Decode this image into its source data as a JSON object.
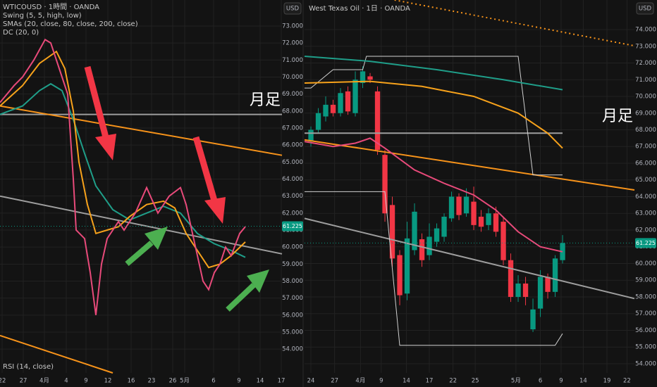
{
  "chart_data": [
    {
      "type": "line",
      "title": "WTICOUSD · 1時間 · OANDA",
      "currency": "USD",
      "legend": [
        "Swing (5, 5, high, low)",
        "SMAs (20, close, 80, close, 200, close)",
        "DC (20, 0)"
      ],
      "indicator": "RSI (14, close)",
      "annotation": "月足",
      "last_price": 61.225,
      "xlim": [
        0,
        100
      ],
      "ylim": [
        52.6,
        74.53
      ],
      "xticks": [
        {
          "value": 0.75,
          "label": "22"
        },
        {
          "value": 8.25,
          "label": "27"
        },
        {
          "value": 15.75,
          "label": "4月"
        },
        {
          "value": 23.5,
          "label": "4"
        },
        {
          "value": 30.5,
          "label": "9"
        },
        {
          "value": 38.25,
          "label": "12"
        },
        {
          "value": 46.5,
          "label": "16"
        },
        {
          "value": 53.75,
          "label": "23"
        },
        {
          "value": 61.25,
          "label": "26"
        },
        {
          "value": 65.5,
          "label": "5月"
        },
        {
          "value": 75.75,
          "label": "6"
        },
        {
          "value": 84.75,
          "label": "9"
        },
        {
          "value": 92.25,
          "label": "14"
        },
        {
          "value": 99.75,
          "label": "17"
        }
      ],
      "yticks": [
        {
          "value": 73,
          "label": "73.000"
        },
        {
          "value": 72,
          "label": "72.000"
        },
        {
          "value": 71,
          "label": "71.000"
        },
        {
          "value": 70,
          "label": "70.000"
        },
        {
          "value": 69,
          "label": "69.000"
        },
        {
          "value": 68,
          "label": "68.000"
        },
        {
          "value": 67,
          "label": "67.000"
        },
        {
          "value": 66,
          "label": "66.000"
        },
        {
          "value": 65,
          "label": "65.000"
        },
        {
          "value": 64,
          "label": "64.000"
        },
        {
          "value": 63,
          "label": "63.000"
        },
        {
          "value": 62,
          "label": "62.000"
        },
        {
          "value": 61,
          "label": "61.000"
        },
        {
          "value": 60,
          "label": "60.000"
        },
        {
          "value": 59,
          "label": "59.000"
        },
        {
          "value": 58,
          "label": "58.000"
        },
        {
          "value": 57,
          "label": "57.000"
        },
        {
          "value": 56,
          "label": "56.000"
        },
        {
          "value": 55,
          "label": "55.000"
        },
        {
          "value": 54,
          "label": "54.000"
        }
      ],
      "grid": true,
      "lines": [
        {
          "color": "#9e9e9e",
          "x": [
            0,
            100
          ],
          "values": [
            67.8,
            67.8
          ]
        },
        {
          "color": "#9e9e9e",
          "x": [
            0,
            100
          ],
          "values": [
            63.0,
            59.6
          ]
        },
        {
          "color": "#f7931a",
          "x": [
            0,
            100
          ],
          "values": [
            68.3,
            65.4
          ]
        },
        {
          "color": "#f7931a",
          "x": [
            0,
            40
          ],
          "values": [
            54.8,
            52.6
          ]
        },
        {
          "color": "#1f9e89",
          "x": [
            0,
            8,
            14,
            18,
            22,
            26,
            30,
            34,
            40,
            46,
            52,
            58,
            64,
            70,
            76,
            82,
            87
          ],
          "values": [
            67.8,
            68.3,
            69.2,
            69.6,
            69.2,
            67.5,
            65.5,
            63.6,
            62.2,
            61.6,
            62.0,
            62.4,
            62.0,
            60.8,
            60.2,
            59.8,
            59.4
          ]
        },
        {
          "color": "#f7a21b",
          "x": [
            0,
            8,
            14,
            20,
            23,
            26,
            28,
            31,
            34,
            38,
            42,
            46,
            52,
            58,
            62,
            66,
            70,
            74,
            78,
            82,
            87
          ],
          "values": [
            68.3,
            69.5,
            70.8,
            71.5,
            70.5,
            68,
            65,
            62.5,
            60.8,
            61,
            61.2,
            61.8,
            62.5,
            62.7,
            62.3,
            60.8,
            59.8,
            58.8,
            59.0,
            59.5,
            60.3
          ]
        },
        {
          "color": "#e84a7a",
          "x": [
            0,
            5,
            8,
            12,
            16,
            18,
            20,
            22,
            24,
            26,
            27,
            30,
            32,
            34,
            36,
            38,
            42,
            44,
            48,
            52,
            56,
            60,
            64,
            66,
            68,
            70,
            72,
            74,
            76,
            78,
            80,
            82,
            85,
            87
          ],
          "values": [
            68.5,
            69.5,
            70,
            71,
            72.2,
            72,
            71,
            70,
            69,
            64,
            61,
            60.5,
            58.5,
            56,
            59,
            60.5,
            61.5,
            61,
            62,
            63.5,
            62,
            63,
            63.5,
            62.5,
            61,
            59.5,
            58,
            57.5,
            58.5,
            59,
            60,
            59.5,
            60.8,
            61.2
          ]
        }
      ]
    },
    {
      "type": "candlestick",
      "title": "West Texas Oil · 1日 · OANDA",
      "currency": "USD",
      "annotation": "月足",
      "last_price": 61.225,
      "xlim": [
        -0.86,
        43.71
      ],
      "ylim": [
        53.45,
        75.77
      ],
      "xticks": [
        {
          "value": 0,
          "label": "24"
        },
        {
          "value": 3.2,
          "label": "27"
        },
        {
          "value": 6.7,
          "label": "4月"
        },
        {
          "value": 9.5,
          "label": "9"
        },
        {
          "value": 12.9,
          "label": "14"
        },
        {
          "value": 16,
          "label": "17"
        },
        {
          "value": 19.2,
          "label": "22"
        },
        {
          "value": 22.2,
          "label": "25"
        },
        {
          "value": 27.7,
          "label": "5月"
        },
        {
          "value": 31,
          "label": "6"
        },
        {
          "value": 33.8,
          "label": "9"
        },
        {
          "value": 36.8,
          "label": "14"
        },
        {
          "value": 40,
          "label": "19"
        },
        {
          "value": 42.7,
          "label": "22"
        }
      ],
      "yticks": [
        {
          "value": 74,
          "label": "74.000"
        },
        {
          "value": 73,
          "label": "73.000"
        },
        {
          "value": 72,
          "label": "72.000"
        },
        {
          "value": 71,
          "label": "71.000"
        },
        {
          "value": 70,
          "label": "70.000"
        },
        {
          "value": 69,
          "label": "69.000"
        },
        {
          "value": 68,
          "label": "68.000"
        },
        {
          "value": 67,
          "label": "67.000"
        },
        {
          "value": 66,
          "label": "66.000"
        },
        {
          "value": 65,
          "label": "65.000"
        },
        {
          "value": 64,
          "label": "64.000"
        },
        {
          "value": 63,
          "label": "63.000"
        },
        {
          "value": 62,
          "label": "62.000"
        },
        {
          "value": 61,
          "label": "61.000"
        },
        {
          "value": 60,
          "label": "60.000"
        },
        {
          "value": 59,
          "label": "59.000"
        },
        {
          "value": 58,
          "label": "58.000"
        },
        {
          "value": 57,
          "label": "57.000"
        },
        {
          "value": 56,
          "label": "56.000"
        },
        {
          "value": 55,
          "label": "55.000"
        },
        {
          "value": 54,
          "label": "54.000"
        }
      ],
      "grid": true,
      "up_color": "#089981",
      "down_color": "#f23645",
      "open": [
        67.3,
        68.0,
        68.8,
        69.5,
        69.0,
        70.3,
        69.0,
        70.8,
        71.2,
        70.3,
        66.5,
        63.5,
        60.5,
        58.2,
        60.8,
        61.45,
        60.5,
        61.3,
        61.6,
        62.7,
        64.0,
        63.0,
        63.7,
        62.8,
        62.3,
        63.0,
        62.5,
        60.2,
        58.0,
        58.8,
        56.06,
        57.3,
        59.2,
        58.3,
        60.2
      ],
      "high": [
        68.2,
        69.3,
        70.0,
        69.8,
        70.5,
        70.6,
        71.5,
        71.8,
        71.4,
        70.6,
        66.8,
        64.0,
        60.8,
        62.5,
        63.6,
        61.8,
        62.4,
        62.4,
        63.0,
        64.3,
        64.2,
        64.5,
        64.6,
        63.2,
        63.3,
        63.4,
        62.8,
        60.6,
        59.3,
        59.2,
        57.9,
        59.6,
        59.4,
        60.5,
        61.7
      ],
      "low": [
        67.0,
        67.8,
        68.5,
        68.8,
        68.8,
        68.9,
        68.8,
        70.5,
        70.8,
        66.5,
        62.5,
        59.8,
        57.5,
        57.8,
        60.5,
        59.8,
        60.2,
        61.0,
        61.3,
        62.5,
        62.6,
        62.8,
        62.0,
        61.9,
        62.0,
        61.6,
        59.9,
        57.7,
        57.7,
        57.5,
        55.9,
        56.8,
        57.9,
        58.0,
        60.0
      ],
      "close": [
        68.0,
        69.0,
        69.5,
        69.0,
        70.2,
        69.1,
        71.0,
        71.5,
        71.0,
        66.8,
        63.0,
        60.3,
        58.1,
        61.5,
        63.1,
        60.2,
        61.6,
        62.1,
        62.8,
        64.0,
        62.9,
        64.0,
        62.3,
        62.2,
        63.0,
        61.9,
        60.2,
        58.0,
        58.8,
        58.0,
        57.25,
        59.2,
        58.3,
        60.3,
        61.225
      ],
      "lines": [
        {
          "color": "#9e9e9e",
          "x": [
            -0.86,
            34
          ],
          "values": [
            67.8,
            67.8
          ]
        },
        {
          "color": "#9e9e9e",
          "x": [
            -0.86,
            43.71
          ],
          "values": [
            62.7,
            57.9
          ]
        },
        {
          "color": "#f7931a",
          "x": [
            -0.86,
            43.71
          ],
          "values": [
            67.4,
            64.4
          ]
        },
        {
          "color": "#f7931a",
          "dash": true,
          "x": [
            11.3,
            43.71
          ],
          "values": [
            75.77,
            73.03
          ]
        },
        {
          "color": "#d0d0d0",
          "thin": true,
          "x": [
            -0.86,
            0,
            3,
            7,
            7.5,
            28,
            30,
            34
          ],
          "values": [
            70.5,
            70.5,
            71.6,
            71.6,
            72.4,
            72.4,
            65.3,
            65.3
          ]
        },
        {
          "color": "#d0d0d0",
          "thin": true,
          "x": [
            -0.86,
            10,
            12,
            33,
            34
          ],
          "values": [
            64.3,
            64.3,
            55.1,
            55.1,
            55.8
          ]
        },
        {
          "color": "#1f9e89",
          "x": [
            -0.86,
            8,
            17,
            26,
            34
          ],
          "values": [
            72.4,
            72.1,
            71.6,
            71.0,
            70.4
          ]
        },
        {
          "color": "#f7a21b",
          "x": [
            -0.86,
            8,
            15,
            22,
            28,
            32,
            34
          ],
          "values": [
            70.8,
            70.9,
            70.6,
            70.0,
            69.0,
            67.8,
            66.9
          ]
        },
        {
          "color": "#e84a7a",
          "x": [
            -0.86,
            3,
            6,
            8,
            10,
            14,
            18,
            22,
            25,
            28,
            31,
            34
          ],
          "values": [
            67.3,
            67.0,
            67.2,
            67.5,
            66.9,
            65.6,
            64.8,
            64.1,
            63.2,
            61.9,
            61.0,
            60.7
          ]
        }
      ]
    }
  ]
}
